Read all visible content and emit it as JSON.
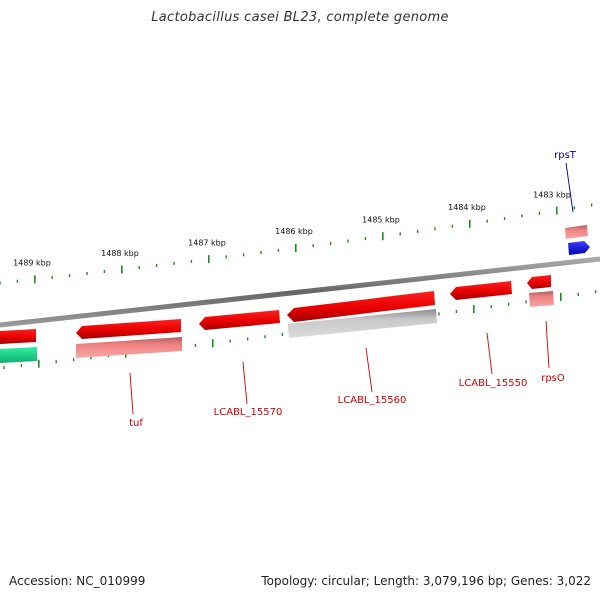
{
  "title": "Lactobacillus casei BL23, complete genome",
  "footer": {
    "accession": "Accession: NC_010999",
    "topology": "Topology: circular; Length: 3,079,196 bp; Genes: 3,022"
  },
  "colors": {
    "forward_gene": "#ee0000",
    "reverse_gene": "#ee8080",
    "pseudogene": "#b8b8b8",
    "rrna": "#1010dd",
    "trna": "#20d890",
    "backbone": "#777777",
    "tick": "#228822",
    "label_red": "#cc0000",
    "label_blue": "#0000aa"
  },
  "kbp_ticks": [
    "1489 kbp",
    "1488 kbp",
    "1487 kbp",
    "1486 kbp",
    "1485 kbp",
    "1484 kbp",
    "1483 kbp"
  ],
  "genes": [
    {
      "name": "rpsT",
      "color": "label_blue"
    },
    {
      "name": "rpsO",
      "color": "label_red"
    },
    {
      "name": "LCABL_15550",
      "color": "label_red"
    },
    {
      "name": "LCABL_15560",
      "color": "label_red"
    },
    {
      "name": "LCABL_15570",
      "color": "label_red"
    },
    {
      "name": "tuf",
      "color": "label_red"
    }
  ]
}
